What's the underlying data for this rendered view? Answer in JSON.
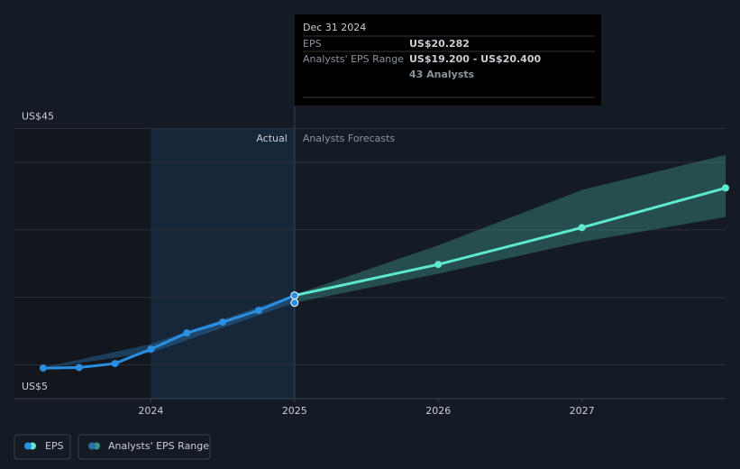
{
  "chart_data": {
    "type": "line",
    "x": [
      2023.25,
      2023.5,
      2023.75,
      2024,
      2024.25,
      2024.5,
      2024.75,
      2025,
      2026,
      2027,
      2028
    ],
    "series": [
      {
        "name": "EPS",
        "color": "#2a8fe0",
        "forecast_color": "#5ee8d0",
        "values": [
          9.53,
          9.6,
          10.2,
          12.33,
          14.73,
          16.33,
          18.07,
          20.282,
          24.87,
          30.33,
          36.2
        ]
      }
    ],
    "forecast_start": 2025,
    "range": {
      "name": "Analysts' EPS Range",
      "color": "#2a6fa8",
      "forecast_color": "#3e8f86",
      "x": [
        2023.25,
        2024,
        2025,
        2026,
        2027,
        2028
      ],
      "low": [
        9.5,
        11.8,
        19.2,
        23.5,
        28.2,
        31.9
      ],
      "high": [
        9.6,
        13.1,
        20.4,
        27.7,
        35.9,
        41.1
      ]
    },
    "xlim": [
      2023.05,
      2028
    ],
    "xticks": [
      2024,
      2025,
      2026,
      2027
    ],
    "ylim": [
      5,
      45
    ],
    "yticks": [
      {
        "value": 5,
        "label": "US$5"
      },
      {
        "value": 45,
        "label": "US$45"
      }
    ],
    "ygrid": [
      10,
      20,
      30,
      40
    ],
    "region_labels": {
      "actual": "Actual",
      "forecast": "Analysts Forecasts"
    },
    "tooltip": {
      "date": "Dec 31 2024",
      "eps_label": "EPS",
      "eps_value": "US$20.282",
      "range_label": "Analysts' EPS Range",
      "range_value": "US$19.200 - US$20.400",
      "analysts": "43 Analysts"
    }
  }
}
